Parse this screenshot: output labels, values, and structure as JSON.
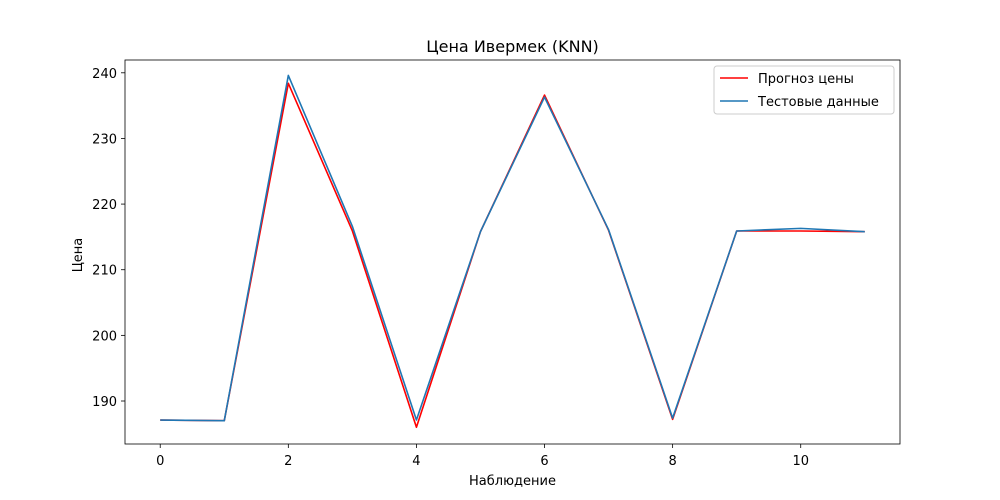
{
  "chart_data": {
    "type": "line",
    "title": "Цена Ивермек (KNN)",
    "xlabel": "Наблюдение",
    "ylabel": "Цена",
    "xlim": [
      -0.55,
      11.55
    ],
    "ylim": [
      183.45,
      241.95
    ],
    "xticks": [
      0,
      2,
      4,
      6,
      8,
      10
    ],
    "yticks": [
      190,
      200,
      210,
      220,
      230,
      240
    ],
    "grid": false,
    "legend_position": "top-right",
    "x": [
      0,
      1,
      2,
      3,
      4,
      5,
      6,
      7,
      8,
      9,
      10,
      11
    ],
    "series": [
      {
        "name": "Прогноз цены",
        "color": "#ff0000",
        "values": [
          187.1,
          187.0,
          238.4,
          215.9,
          186.0,
          215.8,
          236.6,
          216.0,
          187.2,
          215.9,
          215.9,
          215.8
        ]
      },
      {
        "name": "Тестовые данные",
        "color": "#1f77b4",
        "values": [
          187.1,
          187.0,
          239.6,
          216.6,
          187.1,
          215.8,
          236.3,
          216.1,
          187.4,
          215.9,
          216.3,
          215.8
        ]
      }
    ]
  }
}
